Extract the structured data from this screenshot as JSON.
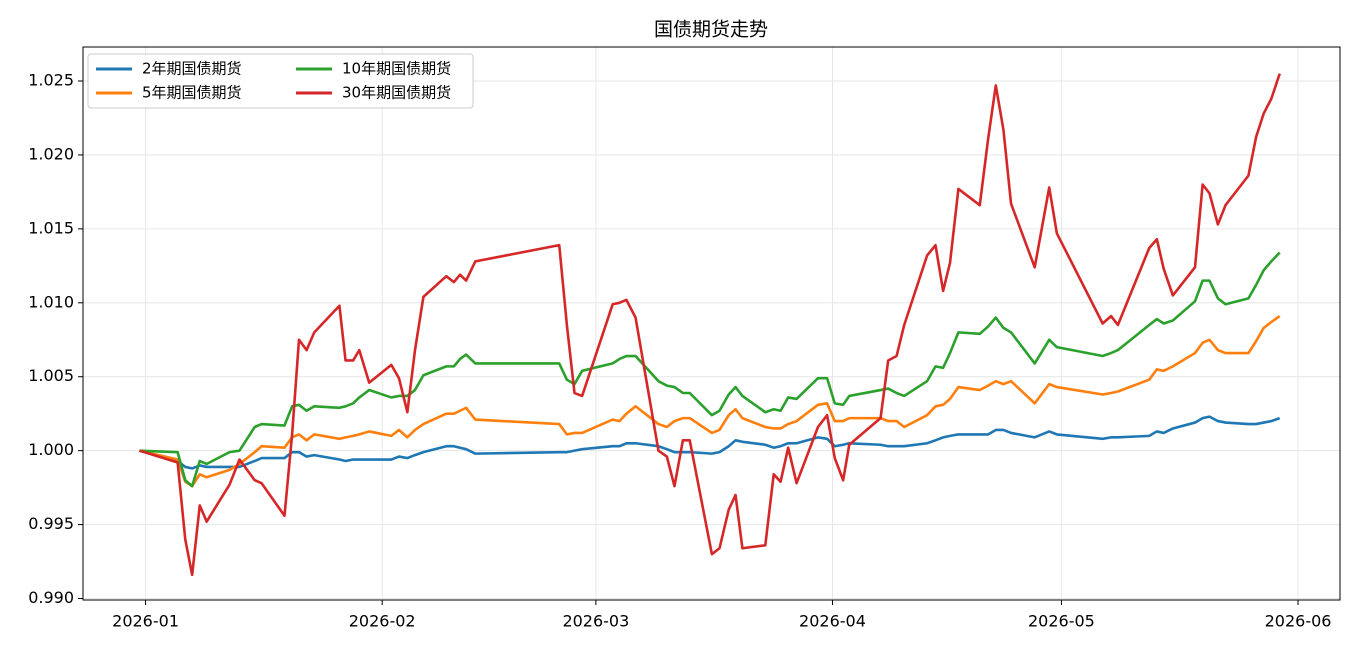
{
  "chart_data": {
    "type": "line",
    "title": "国债期货走势",
    "x": [
      -0.8,
      4.2,
      5.2,
      6.1,
      7.1,
      8.0,
      11.0,
      12.3,
      14.3,
      15.2,
      18.2,
      19.2,
      20.1,
      21.1,
      22.1,
      25.4,
      26.2,
      27.2,
      28.0,
      29.3,
      32.2,
      33.2,
      34.3,
      35.3,
      36.4,
      39.4,
      40.4,
      41.2,
      42.0,
      43.2,
      54.2,
      55.2,
      56.2,
      57.2,
      61.2,
      62.1,
      63.0,
      64.2,
      67.2,
      68.3,
      69.3,
      70.4,
      71.3,
      74.2,
      75.2,
      76.4,
      77.3,
      78.2,
      81.2,
      82.3,
      83.2,
      84.2,
      85.3,
      88.1,
      89.3,
      90.3,
      91.4,
      92.2,
      96.3,
      97.3,
      98.4,
      99.4,
      102.4,
      103.5,
      104.5,
      105.4,
      106.5,
      109.3,
      110.4,
      111.4,
      112.4,
      113.4,
      116.5,
      118.4,
      119.4,
      125.4,
      126.5,
      127.4,
      131.5,
      132.5,
      133.4,
      134.6,
      137.5,
      138.5,
      139.4,
      140.5,
      141.5,
      144.5,
      145.5,
      146.5,
      147.5,
      148.6
    ],
    "series": [
      {
        "name": "2年期国债期货",
        "color": "#1f77b4",
        "values": [
          1.0,
          0.9993,
          0.9989,
          0.9988,
          0.999,
          0.9989,
          0.9989,
          0.9989,
          0.9993,
          0.9995,
          0.9995,
          0.9999,
          0.9999,
          0.9996,
          0.9997,
          0.9994,
          0.9993,
          0.9994,
          0.9994,
          0.9994,
          0.9994,
          0.9996,
          0.9995,
          0.9997,
          0.9999,
          1.0003,
          1.0003,
          1.0002,
          1.0001,
          0.9998,
          0.9999,
          0.9999,
          1.0,
          1.0001,
          1.0003,
          1.0003,
          1.0005,
          1.0005,
          1.0003,
          1.0001,
          0.9999,
          0.9999,
          0.9999,
          0.9998,
          0.9999,
          1.0003,
          1.0007,
          1.0006,
          1.0004,
          1.0002,
          1.0003,
          1.0005,
          1.0005,
          1.0009,
          1.0008,
          1.0003,
          1.0004,
          1.0005,
          1.0004,
          1.0003,
          1.0003,
          1.0003,
          1.0005,
          1.0007,
          1.0009,
          1.001,
          1.0011,
          1.0011,
          1.0011,
          1.0014,
          1.0014,
          1.0012,
          1.0009,
          1.0013,
          1.0011,
          1.0008,
          1.0009,
          1.0009,
          1.001,
          1.0013,
          1.0012,
          1.0015,
          1.0019,
          1.0022,
          1.0023,
          1.002,
          1.0019,
          1.0018,
          1.0018,
          1.0019,
          1.002,
          1.0022
        ]
      },
      {
        "name": "5年期国债期货",
        "color": "#ff7f0e",
        "values": [
          1.0,
          0.9994,
          0.9979,
          0.9976,
          0.9984,
          0.9982,
          0.9987,
          0.9991,
          0.9999,
          1.0003,
          1.0002,
          1.0009,
          1.0011,
          1.0007,
          1.0011,
          1.0008,
          1.0009,
          1.001,
          1.0011,
          1.0013,
          1.001,
          1.0014,
          1.0009,
          1.0014,
          1.0018,
          1.0025,
          1.0025,
          1.0027,
          1.0029,
          1.0021,
          1.0018,
          1.0011,
          1.0012,
          1.0012,
          1.0021,
          1.002,
          1.0025,
          1.003,
          1.0018,
          1.0016,
          1.002,
          1.0022,
          1.0022,
          1.0012,
          1.0014,
          1.0024,
          1.0028,
          1.0022,
          1.0016,
          1.0015,
          1.0015,
          1.0018,
          1.002,
          1.0031,
          1.0032,
          1.002,
          1.002,
          1.0022,
          1.0022,
          1.002,
          1.002,
          1.0016,
          1.0024,
          1.003,
          1.0031,
          1.0035,
          1.0043,
          1.0041,
          1.0044,
          1.0047,
          1.0045,
          1.0047,
          1.0032,
          1.0045,
          1.0043,
          1.0038,
          1.0039,
          1.004,
          1.0048,
          1.0055,
          1.0054,
          1.0057,
          1.0066,
          1.0073,
          1.0075,
          1.0068,
          1.0066,
          1.0066,
          1.0074,
          1.0083,
          1.0087,
          1.0091
        ]
      },
      {
        "name": "10年期国债期货",
        "color": "#2ca02c",
        "values": [
          1.0,
          0.9999,
          0.998,
          0.9976,
          0.9993,
          0.9991,
          0.9999,
          1.0,
          1.0016,
          1.0018,
          1.0017,
          1.003,
          1.0031,
          1.0027,
          1.003,
          1.0029,
          1.003,
          1.0032,
          1.0036,
          1.0041,
          1.0036,
          1.0037,
          1.0037,
          1.0041,
          1.0051,
          1.0057,
          1.0057,
          1.0062,
          1.0065,
          1.0059,
          1.0059,
          1.0048,
          1.0045,
          1.0054,
          1.0059,
          1.0062,
          1.0064,
          1.0064,
          1.0047,
          1.0044,
          1.0043,
          1.0039,
          1.0039,
          1.0024,
          1.0027,
          1.0038,
          1.0043,
          1.0037,
          1.0026,
          1.0028,
          1.0027,
          1.0036,
          1.0035,
          1.0049,
          1.0049,
          1.0032,
          1.0031,
          1.0037,
          1.0041,
          1.0042,
          1.0039,
          1.0037,
          1.0047,
          1.0057,
          1.0056,
          1.0066,
          1.008,
          1.0079,
          1.0084,
          1.009,
          1.0083,
          1.008,
          1.0059,
          1.0075,
          1.007,
          1.0064,
          1.0066,
          1.0068,
          1.0085,
          1.0089,
          1.0086,
          1.0088,
          1.0101,
          1.0115,
          1.0115,
          1.0103,
          1.0099,
          1.0103,
          1.0112,
          1.0122,
          1.0128,
          1.0134
        ]
      },
      {
        "name": "30年期国债期货",
        "color": "#d62728",
        "values": [
          1.0,
          0.9992,
          0.994,
          0.9916,
          0.9963,
          0.9952,
          0.9977,
          0.9994,
          0.998,
          0.9978,
          0.9956,
          1.0011,
          1.0075,
          1.0068,
          1.008,
          1.0098,
          1.0061,
          1.0061,
          1.0068,
          1.0046,
          1.0058,
          1.0049,
          1.0026,
          1.0068,
          1.0104,
          1.0118,
          1.0114,
          1.0119,
          1.0115,
          1.0128,
          1.0139,
          1.0085,
          1.0039,
          1.0037,
          1.0099,
          1.01,
          1.0102,
          1.009,
          1.0,
          0.9996,
          0.9976,
          1.0007,
          1.0007,
          0.993,
          0.9934,
          0.996,
          0.997,
          0.9934,
          0.9936,
          0.9984,
          0.9979,
          1.0002,
          0.9978,
          1.0016,
          1.0024,
          0.9995,
          0.998,
          1.0004,
          1.0022,
          1.0061,
          1.0064,
          1.0085,
          1.0132,
          1.0139,
          1.0108,
          1.0127,
          1.0177,
          1.0166,
          1.0211,
          1.0247,
          1.0217,
          1.0167,
          1.0124,
          1.0178,
          1.0147,
          1.0086,
          1.0091,
          1.0085,
          1.0137,
          1.0143,
          1.0123,
          1.0105,
          1.0124,
          1.018,
          1.0174,
          1.0153,
          1.0166,
          1.0186,
          1.0212,
          1.0228,
          1.0238,
          1.0255
        ]
      }
    ],
    "xlim": [
      -8.2,
      156.5
    ],
    "xticks": [
      {
        "value": 0,
        "label": "2026-01"
      },
      {
        "value": 31,
        "label": "2026-02"
      },
      {
        "value": 59,
        "label": "2026-03"
      },
      {
        "value": 90,
        "label": "2026-04"
      },
      {
        "value": 120,
        "label": "2026-05"
      },
      {
        "value": 151,
        "label": "2026-06"
      }
    ],
    "ylim": [
      0.9899,
      1.0273
    ],
    "yticks": [
      {
        "value": 0.99,
        "label": "0.990"
      },
      0.995,
      {
        "value": 1,
        "label": "1.000"
      },
      1.005,
      {
        "value": 1.01,
        "label": "1.010"
      },
      1.015,
      {
        "value": 1.02,
        "label": "1.020"
      },
      1.025
    ],
    "grid": true,
    "legend": "upper left"
  }
}
